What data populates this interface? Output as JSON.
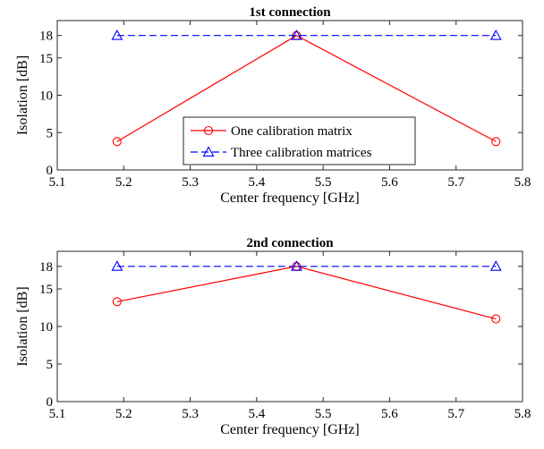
{
  "chart_data": [
    {
      "type": "line",
      "title": "1st connection",
      "xlabel": "Center frequency [GHz]",
      "ylabel": "Isolation [dB]",
      "xlim": [
        5.1,
        5.8
      ],
      "ylim": [
        0,
        20
      ],
      "xticks": [
        "5.1",
        "5.2",
        "5.3",
        "5.4",
        "5.5",
        "5.6",
        "5.7",
        "5.8"
      ],
      "yticks": [
        "0",
        "5",
        "10",
        "15",
        "18"
      ],
      "legend_position": "lower-center",
      "series": [
        {
          "name": "One calibration matrix",
          "x": [
            5.19,
            5.46,
            5.76
          ],
          "y": [
            3.8,
            18.0,
            3.8
          ],
          "color": "#ff0000",
          "marker": "circle",
          "line": "solid"
        },
        {
          "name": "Three calibration matrices",
          "x": [
            5.19,
            5.46,
            5.76
          ],
          "y": [
            18.0,
            18.0,
            18.0
          ],
          "color": "#0000ff",
          "marker": "triangle",
          "line": "dashed"
        }
      ]
    },
    {
      "type": "line",
      "title": "2nd connection",
      "xlabel": "Center frequency [GHz]",
      "ylabel": "Isolation [dB]",
      "xlim": [
        5.1,
        5.8
      ],
      "ylim": [
        0,
        20
      ],
      "xticks": [
        "5.1",
        "5.2",
        "5.3",
        "5.4",
        "5.5",
        "5.6",
        "5.7",
        "5.8"
      ],
      "yticks": [
        "0",
        "5",
        "10",
        "15",
        "18"
      ],
      "series": [
        {
          "x": [
            5.19,
            5.46,
            5.76
          ],
          "y": [
            13.3,
            18.0,
            11.0
          ],
          "color": "#ff0000",
          "marker": "circle",
          "line": "solid"
        },
        {
          "x": [
            5.19,
            5.46,
            5.76
          ],
          "y": [
            18.0,
            18.0,
            18.0
          ],
          "color": "#0000ff",
          "marker": "triangle",
          "line": "dashed"
        }
      ]
    }
  ]
}
